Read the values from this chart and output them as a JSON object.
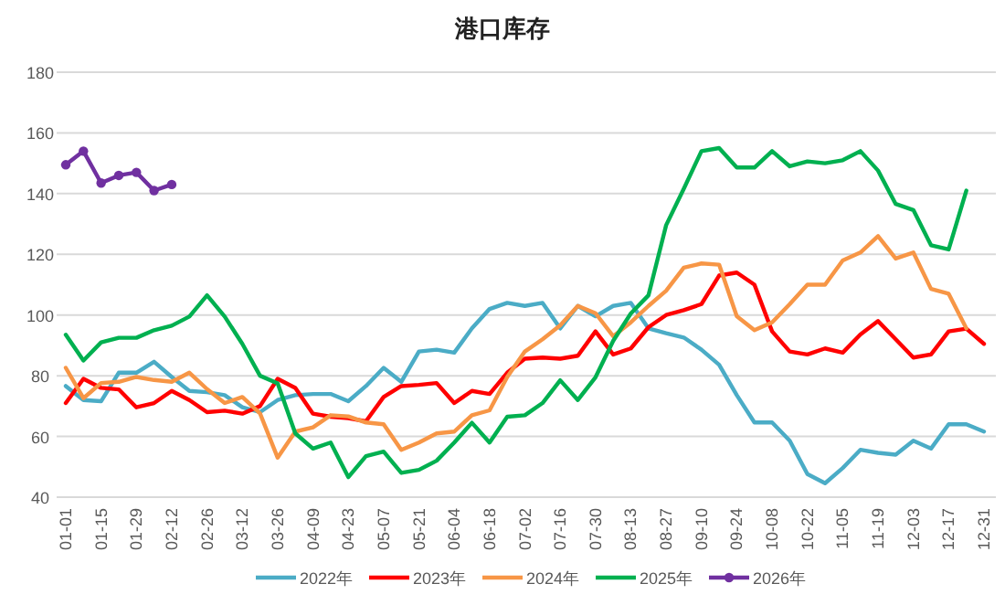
{
  "chart_data": {
    "type": "line",
    "title": "港口库存",
    "categories": [
      "01-01",
      null,
      "01-15",
      null,
      "01-29",
      null,
      "02-12",
      null,
      "02-26",
      null,
      "03-12",
      null,
      "03-26",
      null,
      "04-09",
      null,
      "04-23",
      null,
      "05-07",
      null,
      "05-21",
      null,
      "06-04",
      null,
      "06-18",
      null,
      "07-02",
      null,
      "07-16",
      null,
      "07-30",
      null,
      "08-13",
      null,
      "08-27",
      null,
      "09-10",
      null,
      "09-24",
      null,
      "10-08",
      null,
      "10-22",
      null,
      "11-05",
      null,
      "11-19",
      null,
      "12-03",
      null,
      "12-17",
      null,
      "12-31"
    ],
    "ylim": [
      40,
      180
    ],
    "yticks": [
      40,
      60,
      80,
      100,
      120,
      140,
      160,
      180
    ],
    "grid": "y",
    "legend": "bottom",
    "line_style": "solid",
    "series": [
      {
        "name": "2022年",
        "color": "#4bacc6",
        "marker": "none",
        "values": [
          76.6,
          72,
          71.6,
          81,
          81,
          84.6,
          79.6,
          75,
          74.6,
          73.6,
          69.6,
          68,
          72,
          73.6,
          74,
          74,
          71.6,
          76.6,
          82.6,
          78,
          88,
          88.6,
          87.6,
          95.6,
          102,
          104,
          103,
          104,
          95.6,
          103,
          99.6,
          103,
          104,
          95.6,
          94,
          92.6,
          88.6,
          83.6,
          73.6,
          64.6,
          64.6,
          58.6,
          47.6,
          44.6,
          49.6,
          55.6,
          54.6,
          54,
          58.6,
          56,
          64,
          64,
          61.6
        ]
      },
      {
        "name": "2023年",
        "color": "#ff0000",
        "marker": "none",
        "values": [
          71,
          79,
          76,
          75.5,
          69.6,
          71,
          75,
          72,
          68,
          68.5,
          67.5,
          70,
          79,
          76,
          67.5,
          66.5,
          66,
          65,
          73,
          76.6,
          77,
          77.6,
          71,
          75,
          74,
          81,
          85.6,
          86,
          85.6,
          86.6,
          94.6,
          87,
          89,
          96,
          100,
          101.6,
          103.6,
          113,
          114,
          110,
          94.6,
          88,
          87,
          89,
          87.6,
          93.6,
          98,
          92,
          86,
          87,
          94.6,
          95.5,
          90.5
        ]
      },
      {
        "name": "2024年",
        "color": "#f79646",
        "marker": "none",
        "values": [
          82.6,
          72.6,
          77.6,
          78,
          79.6,
          78.6,
          78,
          81,
          75.6,
          71,
          73,
          67.6,
          53,
          61.6,
          63,
          67,
          66.6,
          64.6,
          64,
          55.6,
          58,
          61,
          61.6,
          67,
          68.6,
          79.6,
          88,
          92,
          96.6,
          103,
          100.6,
          93,
          97.6,
          103,
          108,
          115.6,
          117,
          116.6,
          99.6,
          95,
          97.6,
          103.6,
          110,
          110,
          118,
          120.6,
          126,
          118.6,
          120.6,
          108.6,
          107,
          95.6,
          null
        ]
      },
      {
        "name": "2025年",
        "color": "#00b050",
        "marker": "none",
        "values": [
          93.5,
          85,
          91,
          92.5,
          92.5,
          95,
          96.5,
          99.5,
          106.5,
          99.5,
          90.5,
          80,
          77.5,
          61,
          56,
          58,
          46.6,
          53.5,
          55,
          48,
          49,
          52,
          58,
          64.5,
          58,
          66.5,
          67,
          71,
          78.5,
          72,
          79.5,
          91.5,
          100.5,
          106.5,
          129.6,
          141.6,
          154,
          155,
          148.6,
          148.6,
          154,
          149,
          150.6,
          150,
          151,
          154,
          147.6,
          136.6,
          134.6,
          123,
          121.6,
          141,
          null
        ]
      },
      {
        "name": "2026年",
        "color": "#7030a0",
        "marker": "circle",
        "values": [
          149.5,
          154,
          143.5,
          146,
          147,
          141,
          143,
          null,
          null,
          null,
          null,
          null,
          null,
          null,
          null,
          null,
          null,
          null,
          null,
          null,
          null,
          null,
          null,
          null,
          null,
          null,
          null,
          null,
          null,
          null,
          null,
          null,
          null,
          null,
          null,
          null,
          null,
          null,
          null,
          null,
          null,
          null,
          null,
          null,
          null,
          null,
          null,
          null,
          null,
          null,
          null,
          null,
          null
        ]
      }
    ]
  }
}
